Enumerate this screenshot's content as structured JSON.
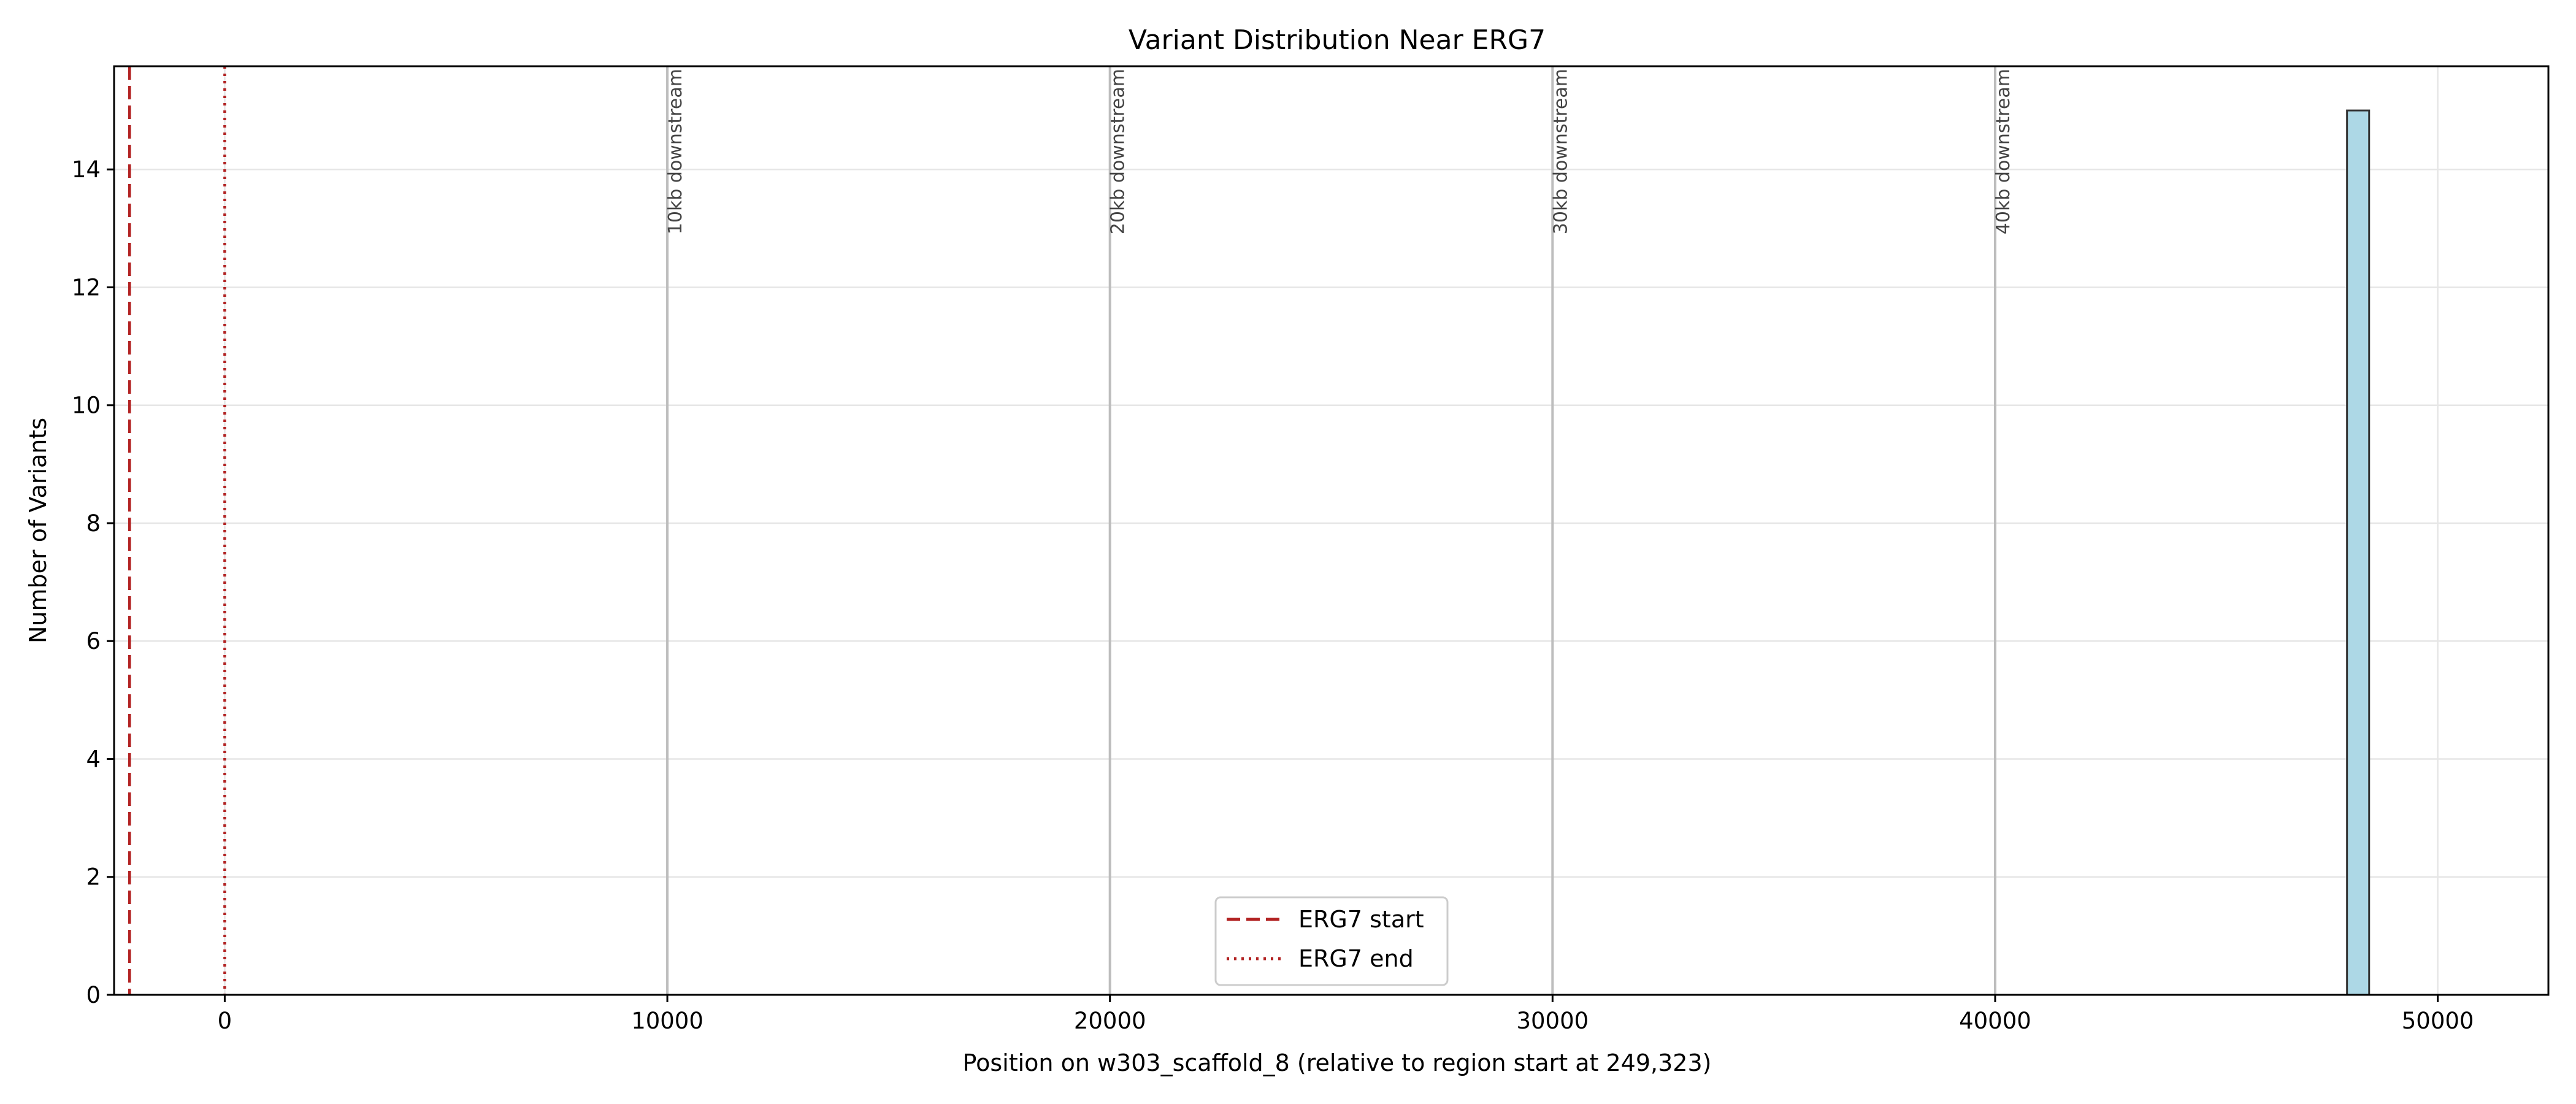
{
  "chart_data": {
    "type": "bar",
    "title": "Variant Distribution Near ERG7",
    "xlabel": "Position on w303_scaffold_8 (relative to region start at 249,323)",
    "ylabel": "Number of Variants",
    "xlim": [
      -2500,
      52500
    ],
    "ylim": [
      0,
      15.75
    ],
    "xticks": [
      0,
      10000,
      20000,
      30000,
      40000,
      50000
    ],
    "yticks": [
      0,
      2,
      4,
      6,
      8,
      10,
      12,
      14
    ],
    "grid": true,
    "bars": [
      {
        "x0": 47950,
        "x1": 48450,
        "value": 15
      }
    ],
    "bar_color": "#add8e6",
    "bar_edge_color": "#333333",
    "gene_lines": [
      {
        "label": "ERG7 start",
        "x": -2150,
        "style": "dashed",
        "color": "#b22222"
      },
      {
        "label": "ERG7 end",
        "x": 0,
        "style": "dotted",
        "color": "#b22222"
      }
    ],
    "marker_lines": [
      {
        "x": 10000,
        "label": "10kb downstream"
      },
      {
        "x": 20000,
        "label": "20kb downstream"
      },
      {
        "x": 30000,
        "label": "30kb downstream"
      },
      {
        "x": 40000,
        "label": "40kb downstream"
      }
    ],
    "legend_position": "lower center"
  }
}
